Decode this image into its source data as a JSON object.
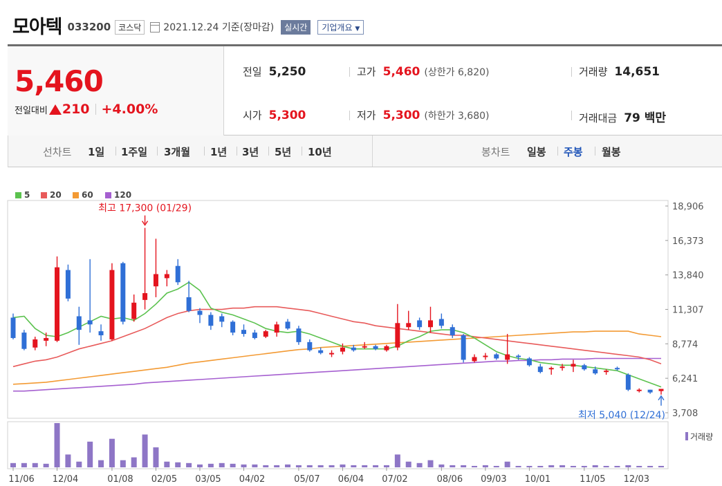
{
  "header": {
    "company": "모아텍",
    "code": "033200",
    "market": "코스닥",
    "date_text": "2021.12.24 기준(장마감)",
    "realtime_label": "실시간",
    "company_info_label": "기업개요"
  },
  "quote": {
    "price": "5,460",
    "change_label": "전일대비",
    "change_amount": "210",
    "change_percent": "+4.00%",
    "prev_close_label": "전일",
    "prev_close": "5,250",
    "high_label": "고가",
    "high": "5,460",
    "upper_limit": "(상한가 6,820)",
    "volume_label": "거래량",
    "volume": "14,651",
    "open_label": "시가",
    "open": "5,300",
    "low_label": "저가",
    "low": "5,300",
    "lower_limit": "(하한가 3,680)",
    "value_label": "거래대금",
    "value": "79 백만"
  },
  "periods": {
    "line_chart_label": "선차트",
    "items": [
      "1일",
      "1주일",
      "3개월",
      "1년",
      "3년",
      "5년",
      "10년"
    ],
    "candle_chart_label": "봉차트",
    "candle_items": [
      "일봉",
      "주봉",
      "월봉"
    ],
    "selected_candle": "주봉"
  },
  "colors": {
    "up": "#e4141e",
    "down": "#2f6fd6",
    "ma5": "#5bc24e",
    "ma20": "#e85a5a",
    "ma60": "#f39a33",
    "ma120": "#a55fd0",
    "volume": "#8e76c6",
    "selected": "#1f54b8"
  },
  "chart_data": {
    "type": "candlestick",
    "legend": [
      {
        "name": "5",
        "color": "#5bc24e"
      },
      {
        "name": "20",
        "color": "#e85a5a"
      },
      {
        "name": "60",
        "color": "#f39a33"
      },
      {
        "name": "120",
        "color": "#a55fd0"
      }
    ],
    "volume_label": "거래량",
    "y_ticks": [
      18906,
      16373,
      13840,
      11307,
      8774,
      6241,
      3708
    ],
    "y_tick_labels": [
      "18,906",
      "16,373",
      "13,840",
      "11,307",
      "8,774",
      "6,241",
      "3,708"
    ],
    "ylim": [
      3708,
      18906
    ],
    "x_tick_labels": [
      "11/06",
      "12/04",
      "01/08",
      "02/05",
      "03/05",
      "04/02",
      "05/07",
      "06/04",
      "07/02",
      "08/06",
      "09/03",
      "10/01",
      "11/05",
      "12/03"
    ],
    "x_tick_index": [
      0,
      4,
      9,
      13,
      17,
      21,
      26,
      30,
      34,
      39,
      43,
      47,
      52,
      56
    ],
    "annotation_high": {
      "text": "최고 17,300 (01/29)",
      "index": 12,
      "value": 17300
    },
    "annotation_low": {
      "text": "최저 5,040 (12/24)",
      "index": 59,
      "value": 5040
    },
    "candles": [
      {
        "o": 10700,
        "h": 11000,
        "l": 9100,
        "c": 9200
      },
      {
        "o": 9600,
        "h": 9800,
        "l": 8300,
        "c": 8400
      },
      {
        "o": 8500,
        "h": 9300,
        "l": 8300,
        "c": 9100
      },
      {
        "o": 9000,
        "h": 9600,
        "l": 8600,
        "c": 9200
      },
      {
        "o": 9000,
        "h": 15200,
        "l": 8900,
        "c": 14400
      },
      {
        "o": 14200,
        "h": 14600,
        "l": 11900,
        "c": 12100
      },
      {
        "o": 10800,
        "h": 11500,
        "l": 8700,
        "c": 9800
      },
      {
        "o": 10500,
        "h": 15000,
        "l": 9600,
        "c": 10200
      },
      {
        "o": 9700,
        "h": 10200,
        "l": 9000,
        "c": 9400
      },
      {
        "o": 9100,
        "h": 14700,
        "l": 9000,
        "c": 14200
      },
      {
        "o": 14700,
        "h": 14800,
        "l": 10200,
        "c": 10400
      },
      {
        "o": 10600,
        "h": 12400,
        "l": 10400,
        "c": 11800
      },
      {
        "o": 12000,
        "h": 17300,
        "l": 11300,
        "c": 12500
      },
      {
        "o": 13000,
        "h": 16500,
        "l": 12200,
        "c": 13900
      },
      {
        "o": 13600,
        "h": 14200,
        "l": 13000,
        "c": 13900
      },
      {
        "o": 14500,
        "h": 15000,
        "l": 13100,
        "c": 13300
      },
      {
        "o": 12200,
        "h": 13400,
        "l": 11100,
        "c": 11200
      },
      {
        "o": 11200,
        "h": 11400,
        "l": 10300,
        "c": 10900
      },
      {
        "o": 10900,
        "h": 11100,
        "l": 9800,
        "c": 10100
      },
      {
        "o": 10800,
        "h": 11000,
        "l": 10000,
        "c": 10400
      },
      {
        "o": 10400,
        "h": 10500,
        "l": 9400,
        "c": 9600
      },
      {
        "o": 9800,
        "h": 10200,
        "l": 9300,
        "c": 9500
      },
      {
        "o": 9600,
        "h": 9800,
        "l": 9100,
        "c": 9200
      },
      {
        "o": 9300,
        "h": 9800,
        "l": 9200,
        "c": 9700
      },
      {
        "o": 9600,
        "h": 10400,
        "l": 9300,
        "c": 10200
      },
      {
        "o": 10400,
        "h": 10600,
        "l": 9800,
        "c": 9900
      },
      {
        "o": 9900,
        "h": 10100,
        "l": 8700,
        "c": 8900
      },
      {
        "o": 8900,
        "h": 9100,
        "l": 8200,
        "c": 8300
      },
      {
        "o": 8300,
        "h": 8500,
        "l": 8000,
        "c": 8100
      },
      {
        "o": 8000,
        "h": 8300,
        "l": 7800,
        "c": 8100
      },
      {
        "o": 8200,
        "h": 8800,
        "l": 8000,
        "c": 8500
      },
      {
        "o": 8500,
        "h": 8700,
        "l": 8200,
        "c": 8300
      },
      {
        "o": 8500,
        "h": 8900,
        "l": 8400,
        "c": 8600
      },
      {
        "o": 8600,
        "h": 8700,
        "l": 8300,
        "c": 8400
      },
      {
        "o": 8300,
        "h": 8700,
        "l": 8200,
        "c": 8600
      },
      {
        "o": 8500,
        "h": 11700,
        "l": 8300,
        "c": 10300
      },
      {
        "o": 10000,
        "h": 11200,
        "l": 9800,
        "c": 10300
      },
      {
        "o": 10500,
        "h": 10700,
        "l": 9800,
        "c": 10000
      },
      {
        "o": 10000,
        "h": 11500,
        "l": 9600,
        "c": 10500
      },
      {
        "o": 10600,
        "h": 11000,
        "l": 9900,
        "c": 10100
      },
      {
        "o": 10000,
        "h": 10200,
        "l": 9200,
        "c": 9400
      },
      {
        "o": 9400,
        "h": 9500,
        "l": 7400,
        "c": 7600
      },
      {
        "o": 7500,
        "h": 8000,
        "l": 7400,
        "c": 7800
      },
      {
        "o": 7800,
        "h": 8100,
        "l": 7600,
        "c": 7900
      },
      {
        "o": 8000,
        "h": 8100,
        "l": 7600,
        "c": 7700
      },
      {
        "o": 7600,
        "h": 9500,
        "l": 7300,
        "c": 8000
      },
      {
        "o": 7900,
        "h": 8000,
        "l": 7600,
        "c": 7800
      },
      {
        "o": 7700,
        "h": 7800,
        "l": 7100,
        "c": 7200
      },
      {
        "o": 7100,
        "h": 7300,
        "l": 6600,
        "c": 6700
      },
      {
        "o": 6900,
        "h": 7100,
        "l": 6500,
        "c": 7000
      },
      {
        "o": 7000,
        "h": 7300,
        "l": 6800,
        "c": 7100
      },
      {
        "o": 7100,
        "h": 7600,
        "l": 6700,
        "c": 7300
      },
      {
        "o": 7200,
        "h": 7300,
        "l": 6800,
        "c": 6900
      },
      {
        "o": 6900,
        "h": 7100,
        "l": 6500,
        "c": 6600
      },
      {
        "o": 6700,
        "h": 6900,
        "l": 6500,
        "c": 6800
      },
      {
        "o": 7000,
        "h": 7100,
        "l": 6800,
        "c": 6900
      },
      {
        "o": 6500,
        "h": 6600,
        "l": 5300,
        "c": 5400
      },
      {
        "o": 5300,
        "h": 5500,
        "l": 5200,
        "c": 5400
      },
      {
        "o": 5400,
        "h": 5400,
        "l": 5100,
        "c": 5200
      },
      {
        "o": 5300,
        "h": 5460,
        "l": 5040,
        "c": 5460
      }
    ],
    "volume": [
      6,
      6,
      6,
      5,
      62,
      18,
      8,
      36,
      10,
      40,
      10,
      14,
      46,
      28,
      8,
      7,
      6,
      4,
      5,
      6,
      5,
      4,
      4,
      3,
      3,
      4,
      3,
      3,
      3,
      3,
      4,
      3,
      3,
      3,
      3,
      18,
      8,
      6,
      10,
      4,
      3,
      3,
      2,
      3,
      2,
      8,
      2,
      2,
      2,
      3,
      3,
      2,
      2,
      3,
      2,
      2,
      3,
      2,
      2,
      2
    ],
    "ma5": [
      10700,
      10800,
      9900,
      9400,
      9300,
      9600,
      10000,
      10400,
      10800,
      10600,
      10700,
      10500,
      11000,
      11700,
      12500,
      12800,
      13300,
      12700,
      11400,
      11100,
      10900,
      10600,
      10300,
      9900,
      9700,
      9600,
      9700,
      9500,
      9200,
      8900,
      8600,
      8400,
      8400,
      8400,
      8400,
      8600,
      9000,
      9300,
      9700,
      9800,
      9800,
      9600,
      9200,
      8700,
      8200,
      7900,
      7700,
      7600,
      7400,
      7300,
      7200,
      7200,
      7100,
      7000,
      6900,
      6800,
      6500,
      6200,
      5900,
      5600
    ],
    "ma20": [
      7100,
      7300,
      7500,
      7600,
      7800,
      8100,
      8400,
      8600,
      8800,
      9000,
      9300,
      9600,
      9900,
      10300,
      10700,
      11000,
      11200,
      11300,
      11300,
      11300,
      11400,
      11400,
      11500,
      11500,
      11500,
      11400,
      11300,
      11200,
      11000,
      10800,
      10600,
      10400,
      10300,
      10100,
      10000,
      9900,
      9800,
      9700,
      9600,
      9500,
      9400,
      9400,
      9300,
      9200,
      9100,
      9000,
      8900,
      8800,
      8700,
      8600,
      8500,
      8400,
      8300,
      8200,
      8100,
      8000,
      7900,
      7800,
      7600,
      7300
    ],
    "ma60": [
      5800,
      5850,
      5900,
      5950,
      6050,
      6150,
      6250,
      6350,
      6450,
      6550,
      6650,
      6750,
      6850,
      6950,
      7050,
      7200,
      7350,
      7450,
      7550,
      7650,
      7750,
      7850,
      7950,
      8050,
      8150,
      8250,
      8350,
      8400,
      8500,
      8550,
      8600,
      8650,
      8700,
      8750,
      8800,
      8850,
      8900,
      8950,
      9000,
      9050,
      9100,
      9150,
      9200,
      9250,
      9300,
      9350,
      9400,
      9450,
      9500,
      9550,
      9600,
      9650,
      9650,
      9700,
      9700,
      9700,
      9700,
      9500,
      9400,
      9300
    ],
    "ma120": [
      5300,
      5300,
      5350,
      5400,
      5450,
      5500,
      5550,
      5600,
      5650,
      5700,
      5750,
      5800,
      5900,
      5950,
      6000,
      6050,
      6100,
      6150,
      6200,
      6250,
      6300,
      6350,
      6400,
      6450,
      6500,
      6550,
      6600,
      6650,
      6700,
      6750,
      6800,
      6850,
      6900,
      6950,
      7000,
      7050,
      7100,
      7150,
      7200,
      7250,
      7300,
      7350,
      7400,
      7450,
      7500,
      7500,
      7550,
      7550,
      7600,
      7600,
      7650,
      7650,
      7650,
      7700,
      7700,
      7700,
      7700,
      7700,
      7700,
      7700
    ]
  }
}
